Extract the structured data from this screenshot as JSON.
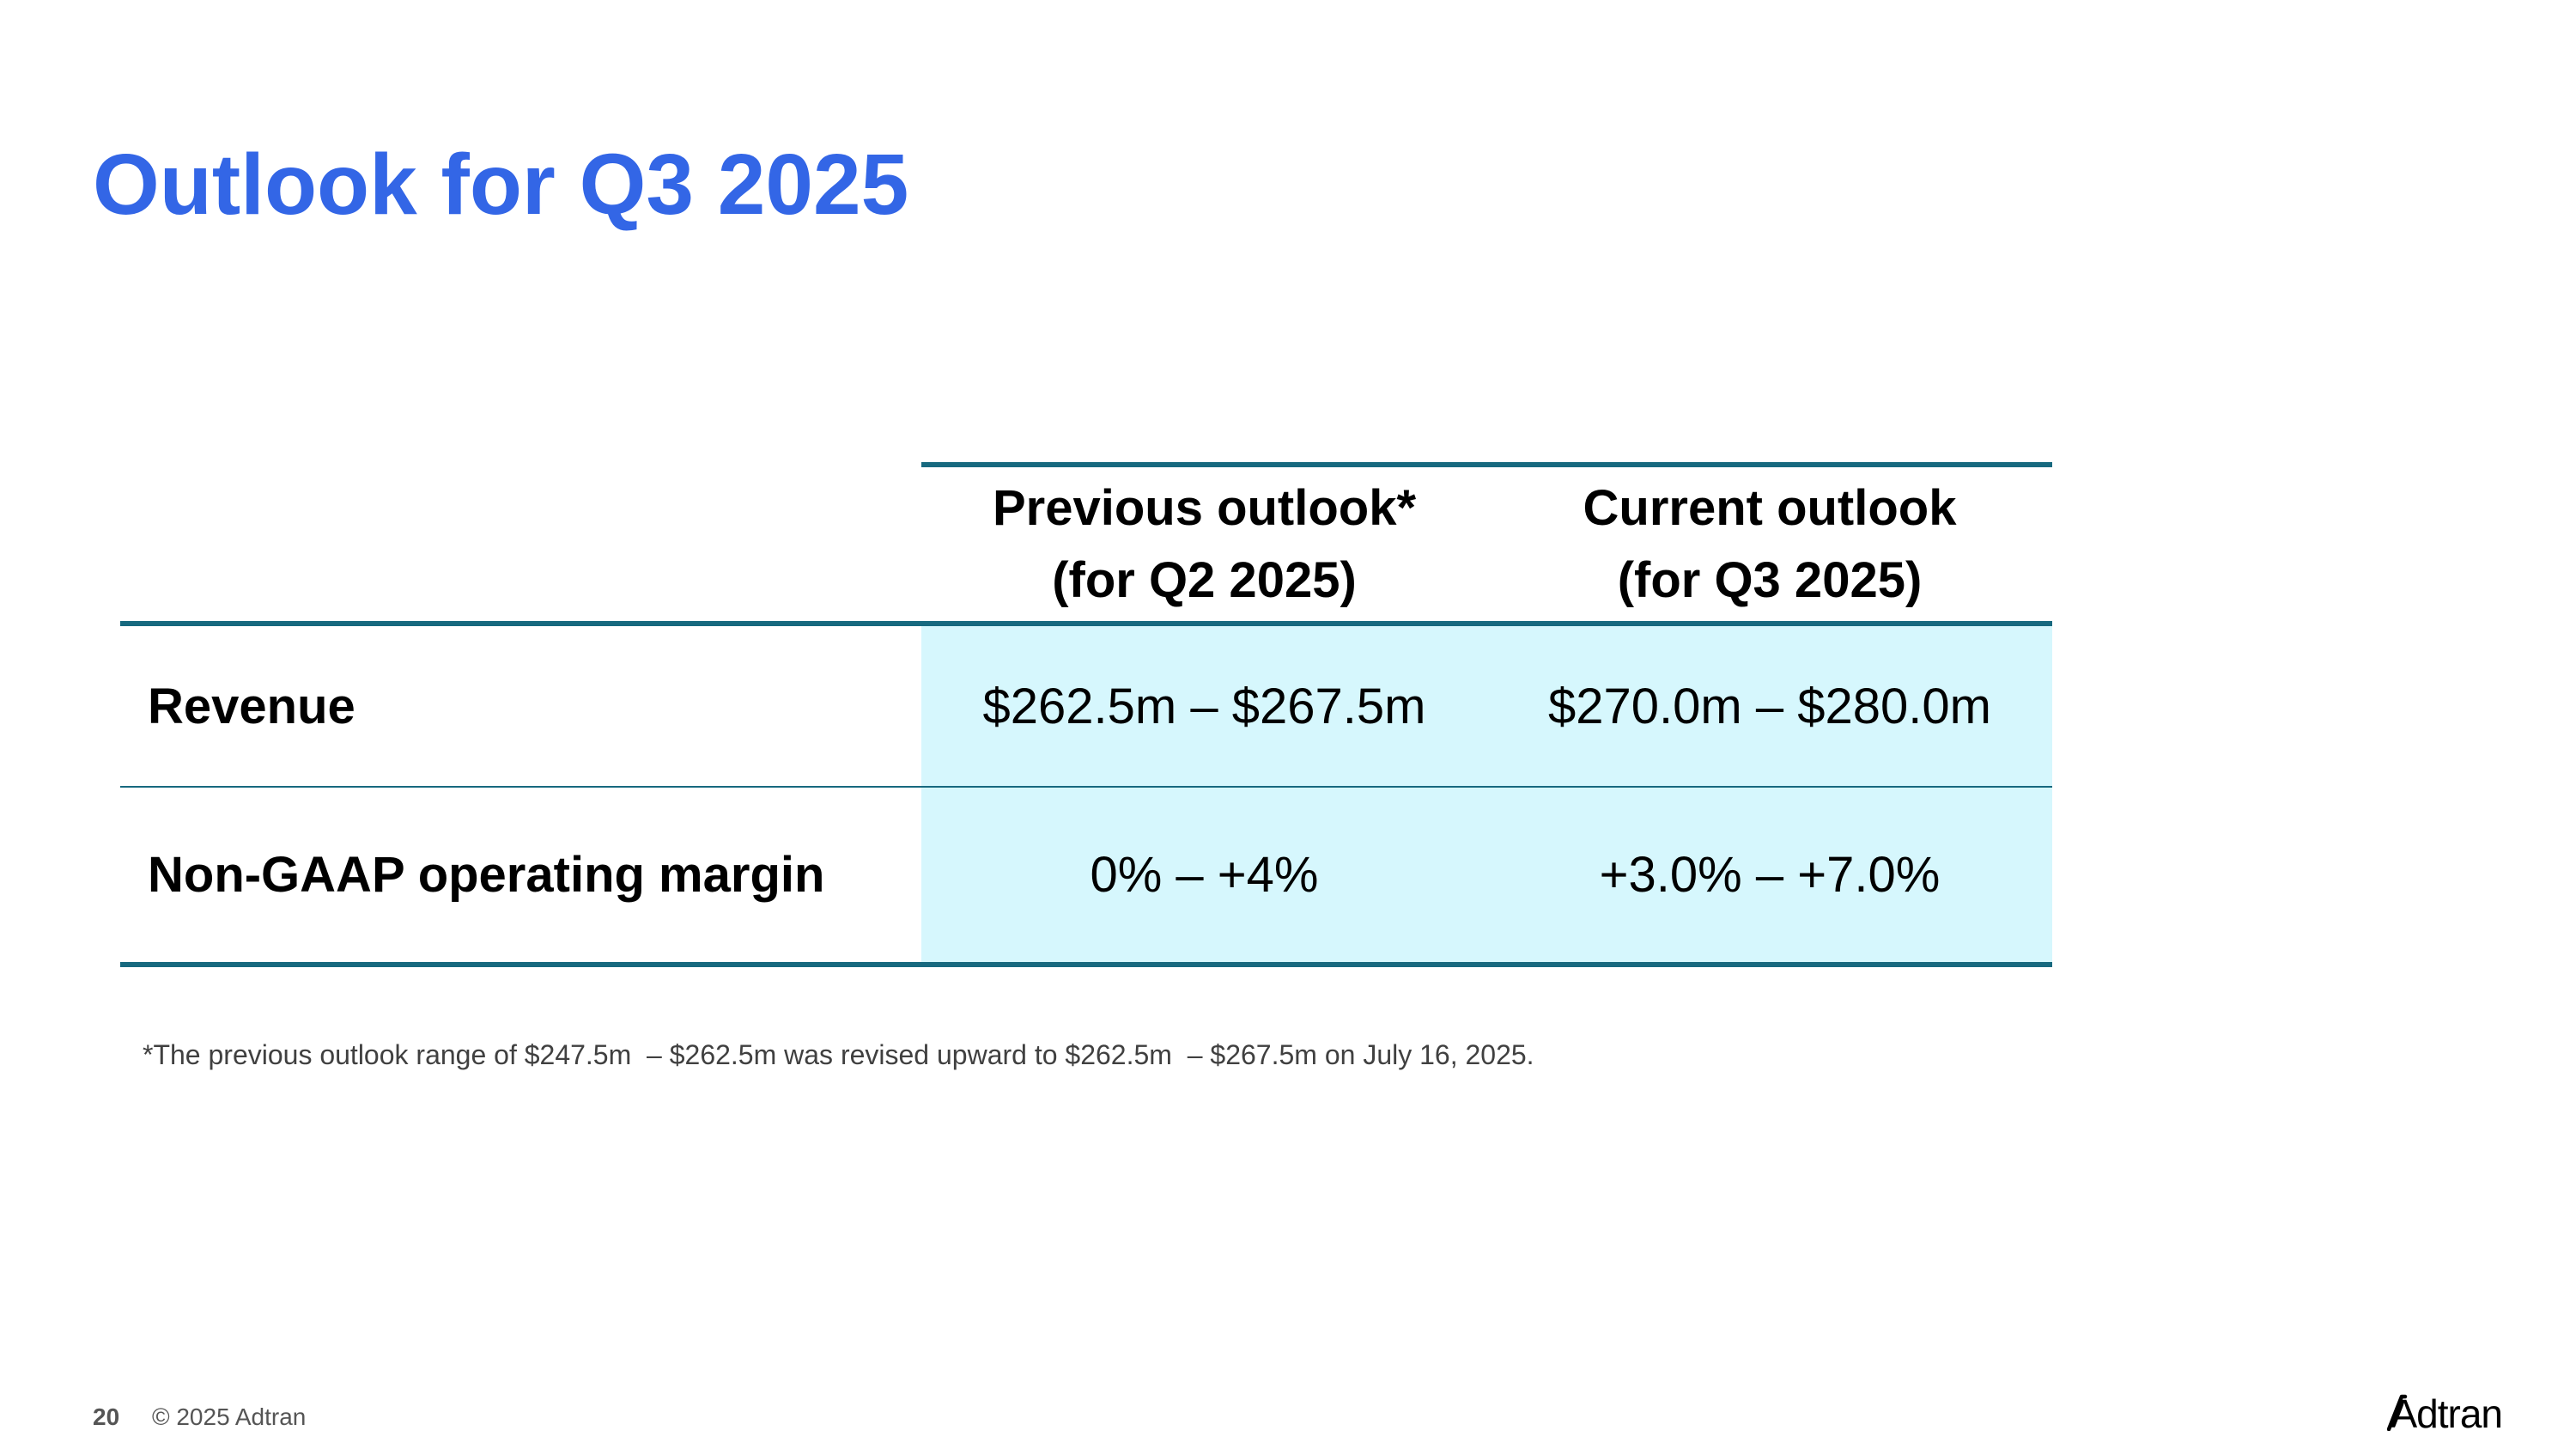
{
  "slide": {
    "title": "Outlook for Q3 2025"
  },
  "table": {
    "headers": {
      "previous_line1": "Previous outlook*",
      "previous_line2": "(for Q2 2025)",
      "current_line1": "Current outlook",
      "current_line2": "(for Q3 2025)"
    },
    "rows": [
      {
        "label": "Revenue",
        "previous": "$262.5m – $267.5m",
        "current": "$270.0m – $280.0m"
      },
      {
        "label": "Non-GAAP operating margin",
        "previous": "0% – +4%",
        "current": "+3.0% – +7.0%"
      }
    ]
  },
  "footnote": "*The previous outlook range of $247.5m  – $262.5m was revised upward to $262.5m  – $267.5m on July 16, 2025.",
  "footer": {
    "page_number": "20",
    "copyright": "© 2025 Adtran"
  },
  "logo": {
    "text": "Adtran",
    "color": "#000000"
  },
  "colors": {
    "title": "#3366e6",
    "table_rule": "#17697f",
    "value_fill": "#d6f7fd"
  }
}
